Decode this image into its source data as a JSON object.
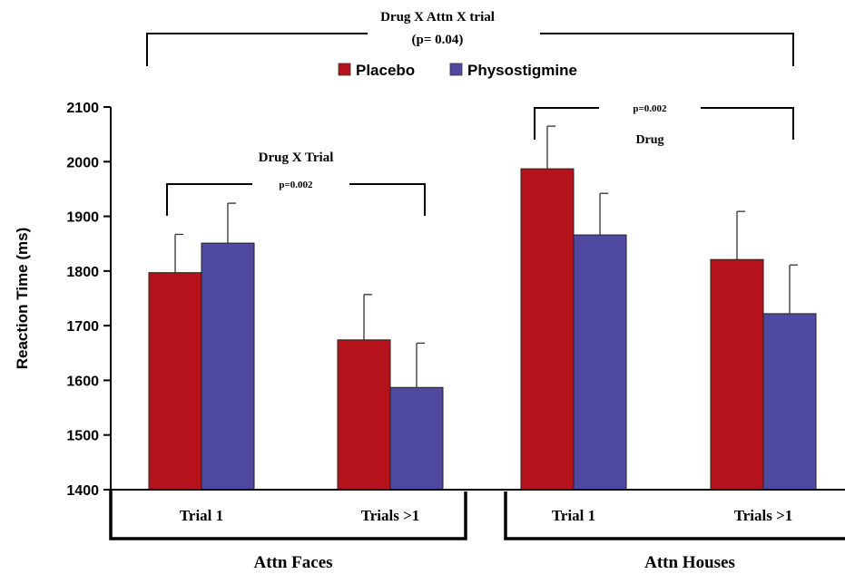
{
  "chart_data": {
    "type": "bar",
    "title": "",
    "ylabel": "Reaction Time (ms)",
    "ylim": [
      1400,
      2100
    ],
    "yticks": [
      1400,
      1500,
      1600,
      1700,
      1800,
      1900,
      2000,
      2100
    ],
    "categories": [
      "Trial 1",
      "Trials >1",
      "Trial 1",
      "Trials >1"
    ],
    "groups": [
      "Attn Faces",
      "Attn Houses"
    ],
    "series": [
      {
        "name": "Placebo",
        "color": "#b5121b",
        "values": [
          1797,
          1674,
          1987,
          1821
        ],
        "errors": [
          70,
          83,
          78,
          88
        ]
      },
      {
        "name": "Physostigmine",
        "color": "#4f4aa0",
        "values": [
          1851,
          1587,
          1866,
          1722
        ],
        "errors": [
          73,
          81,
          76,
          89
        ]
      }
    ],
    "legend_position": "top-center",
    "grid": false,
    "annotations": {
      "top": {
        "line1": "Drug X Attn X trial",
        "line2": "(p= 0.04)"
      },
      "faces": {
        "title": "Drug X Trial",
        "p": "p=0.002"
      },
      "houses": {
        "p": "p=0.002",
        "label": "Drug"
      }
    }
  }
}
